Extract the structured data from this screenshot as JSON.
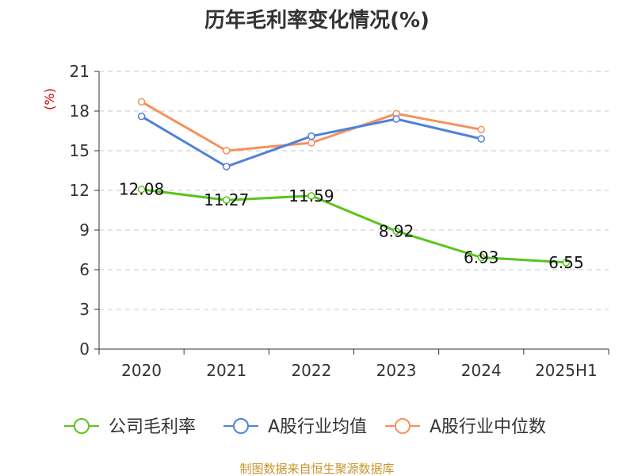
{
  "chart_data": {
    "type": "line",
    "title": "历年毛利率变化情况(%)",
    "ylabel": "(%)",
    "xlabel": "",
    "categories": [
      "2020",
      "2021",
      "2022",
      "2023",
      "2024",
      "2025H1"
    ],
    "ylim": [
      0,
      21
    ],
    "yticks": [
      0,
      3,
      6,
      9,
      12,
      15,
      18,
      21
    ],
    "grid": "horizontal-dashed",
    "legend_position": "bottom",
    "series": [
      {
        "name": "公司毛利率",
        "color": "#5ac41e",
        "values": [
          12.08,
          11.27,
          11.59,
          8.92,
          6.93,
          6.55
        ],
        "labels": [
          "12.08",
          "11.27",
          "11.59",
          "8.92",
          "6.93",
          "6.55"
        ]
      },
      {
        "name": "A股行业均值",
        "color": "#4f81d9",
        "values": [
          17.6,
          13.8,
          16.1,
          17.4,
          15.9,
          null
        ]
      },
      {
        "name": "A股行业中位数",
        "color": "#f5915c",
        "values": [
          18.7,
          15.0,
          15.6,
          17.8,
          16.6,
          null
        ]
      }
    ]
  },
  "source": "制图数据来自恒生聚源数据库"
}
